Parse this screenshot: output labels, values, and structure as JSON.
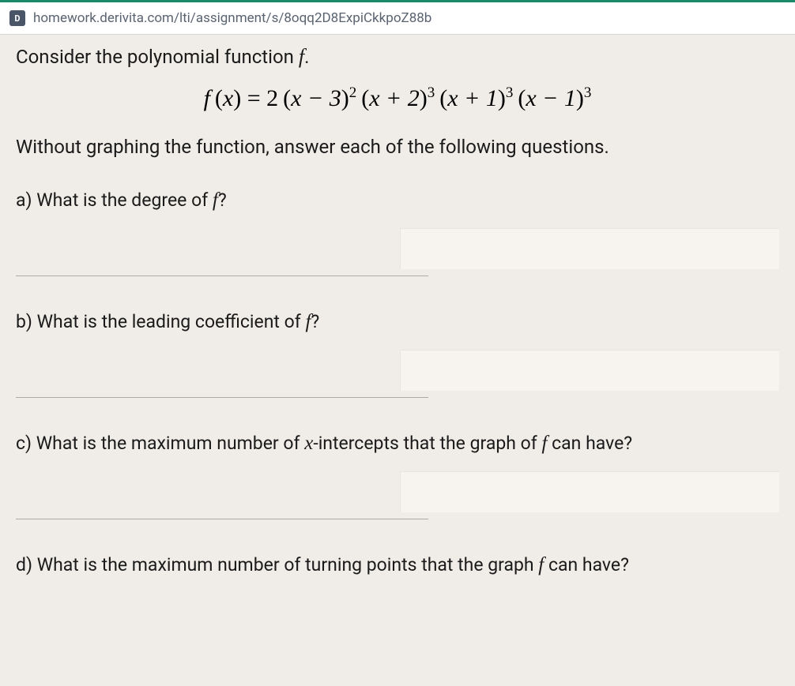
{
  "browser": {
    "url": "homework.derivita.com/lti/assignment/s/8oqq2D8ExpiCkkpoZ88b",
    "favicon_letter": "D"
  },
  "colors": {
    "page_bg": "#f0ede8",
    "input_bg": "#f7f4ef",
    "accent": "#1a8a6b",
    "text": "#1a1a1a",
    "url_text": "#5a6370",
    "divider": "rgba(0,0,0,0.28)"
  },
  "intro": {
    "prefix": "Consider the polynomial function ",
    "fn": "f",
    "suffix": "."
  },
  "equation": {
    "lhs_fn": "f",
    "lhs_arg": "x",
    "coeff": "2",
    "factors": [
      {
        "inner": "x − 3",
        "exp": "2"
      },
      {
        "inner": "x + 2",
        "exp": "3"
      },
      {
        "inner": "x + 1",
        "exp": "3"
      },
      {
        "inner": "x − 1",
        "exp": "3"
      }
    ]
  },
  "followup": "Without graphing the function, answer each of the following questions.",
  "questions": {
    "a": {
      "label": "a) ",
      "pre": "What is the degree of ",
      "fn": "f",
      "post": "?",
      "answer": ""
    },
    "b": {
      "label": "b) ",
      "pre": "What is the leading coefficient of ",
      "fn": "f",
      "post": "?",
      "answer": ""
    },
    "c": {
      "label": "c) ",
      "pre": "What is the maximum number of ",
      "xvar": "x",
      "mid": "-intercepts that the graph of ",
      "fn": "f",
      "post": " can have?",
      "answer": ""
    },
    "d": {
      "label": "d) ",
      "pre": "What is the maximum number of turning points that the graph ",
      "fn": "f",
      "post": " can have?",
      "answer": ""
    }
  }
}
